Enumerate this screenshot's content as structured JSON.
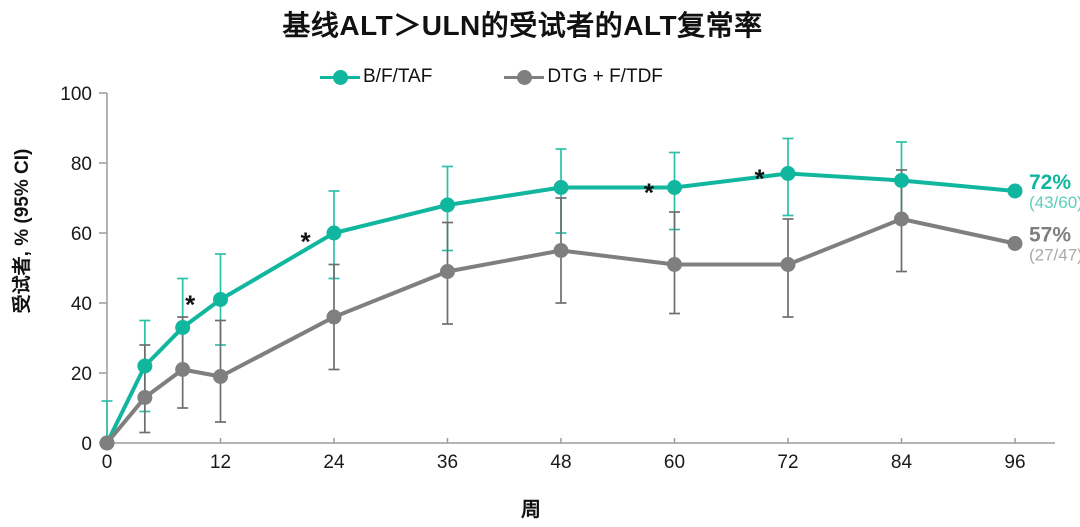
{
  "chart_data": {
    "type": "line",
    "title": "基线ALT＞ULN的受试者的ALT复常率",
    "xlabel": "周",
    "ylabel": "受试者, % (95% CI)",
    "x_ticks": [
      0,
      12,
      24,
      36,
      48,
      60,
      72,
      84,
      96
    ],
    "y_ticks": [
      0,
      20,
      40,
      60,
      80,
      100
    ],
    "ylim": [
      0,
      100
    ],
    "grid": false,
    "legend_position": "top",
    "axis_color": "#9b9b9b",
    "text_color": "#1a1a1a",
    "asterisk_char": "*",
    "series": [
      {
        "id": "bftaf",
        "name": "B/F/TAF",
        "color": "#10b79e",
        "light_color": "#5ccfbc",
        "err_color": "#2cc0a9",
        "points": [
          {
            "x": 0,
            "y": 0,
            "lo": 0,
            "hi": 12
          },
          {
            "x": 4,
            "y": 22,
            "lo": 9,
            "hi": 35
          },
          {
            "x": 8,
            "y": 33,
            "lo": 21,
            "hi": 47
          },
          {
            "x": 12,
            "y": 41,
            "lo": 28,
            "hi": 54
          },
          {
            "x": 24,
            "y": 60,
            "lo": 47,
            "hi": 72
          },
          {
            "x": 36,
            "y": 68,
            "lo": 55,
            "hi": 79
          },
          {
            "x": 48,
            "y": 73,
            "lo": 60,
            "hi": 84
          },
          {
            "x": 60,
            "y": 73,
            "lo": 61,
            "hi": 83
          },
          {
            "x": 72,
            "y": 77,
            "lo": 65,
            "hi": 87
          },
          {
            "x": 84,
            "y": 75,
            "lo": 63,
            "hi": 86
          },
          {
            "x": 96,
            "y": 72
          }
        ],
        "end_label": {
          "pct": "72%",
          "frac": "(43/60)"
        }
      },
      {
        "id": "dtg",
        "name": "DTG + F/TDF",
        "color": "#7f7f7f",
        "light_color": "#aaaaaa",
        "err_color": "#6e6e6e",
        "points": [
          {
            "x": 0,
            "y": 0
          },
          {
            "x": 4,
            "y": 13,
            "lo": 3,
            "hi": 28
          },
          {
            "x": 8,
            "y": 21,
            "lo": 10,
            "hi": 36
          },
          {
            "x": 12,
            "y": 19,
            "lo": 6,
            "hi": 35
          },
          {
            "x": 24,
            "y": 36,
            "lo": 21,
            "hi": 51
          },
          {
            "x": 36,
            "y": 49,
            "lo": 34,
            "hi": 63
          },
          {
            "x": 48,
            "y": 55,
            "lo": 40,
            "hi": 70
          },
          {
            "x": 60,
            "y": 51,
            "lo": 37,
            "hi": 66
          },
          {
            "x": 72,
            "y": 51,
            "lo": 36,
            "hi": 64
          },
          {
            "x": 84,
            "y": 64,
            "lo": 49,
            "hi": 78
          },
          {
            "x": 96,
            "y": 57
          }
        ],
        "end_label": {
          "pct": "57%",
          "frac": "(27/47)"
        }
      }
    ],
    "asterisks": [
      {
        "x": 8.8,
        "y": 41
      },
      {
        "x": 21.0,
        "y": 59
      },
      {
        "x": 57.3,
        "y": 73
      },
      {
        "x": 69.0,
        "y": 77
      }
    ]
  }
}
